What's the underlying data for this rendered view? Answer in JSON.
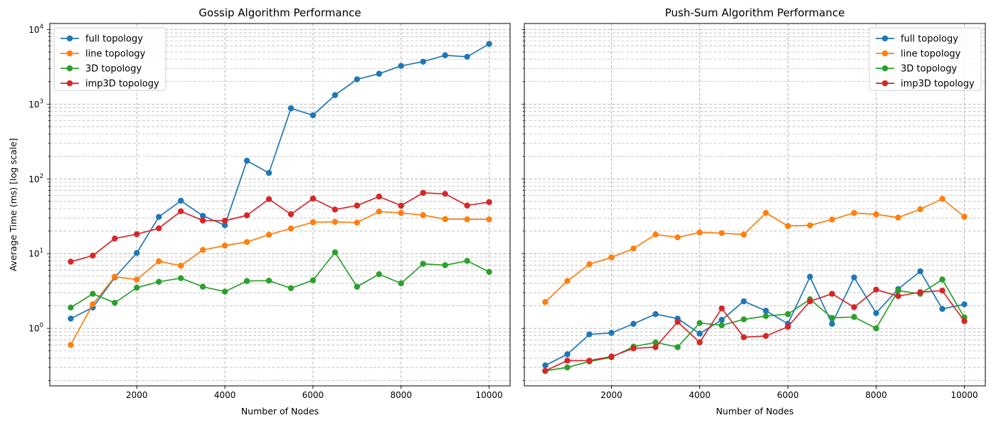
{
  "chart_data": [
    {
      "type": "line",
      "title": "Gossip Algorithm Performance",
      "xlabel": "Number of Nodes",
      "ylabel": "Average Time (ms) [log scale]",
      "yscale": "log",
      "xlim": [
        25,
        10475
      ],
      "ylim": [
        0.17,
        12000
      ],
      "xticks": [
        2000,
        4000,
        6000,
        8000,
        10000
      ],
      "xtick_labels": [
        "2000",
        "4000",
        "6000",
        "8000",
        "10000"
      ],
      "ytick_labels": [
        {
          "value": 1,
          "base": "10",
          "exp": "0"
        },
        {
          "value": 10,
          "base": "10",
          "exp": "1"
        },
        {
          "value": 100,
          "base": "10",
          "exp": "2"
        },
        {
          "value": 1000,
          "base": "10",
          "exp": "3"
        },
        {
          "value": 10000,
          "base": "10",
          "exp": "4"
        }
      ],
      "grid": true,
      "legend_position": "top-left",
      "x": [
        500,
        1000,
        1500,
        2000,
        2500,
        3000,
        3500,
        4000,
        4500,
        5000,
        5500,
        6000,
        6500,
        7000,
        7500,
        8000,
        8500,
        9000,
        9500,
        10000
      ],
      "series": [
        {
          "name": "full topology",
          "color": "#1f77b4",
          "values": [
            1.35,
            1.9,
            4.8,
            10.2,
            31,
            51,
            32,
            24,
            175,
            120,
            880,
            710,
            1320,
            2150,
            2550,
            3250,
            3700,
            4500,
            4300,
            6400
          ]
        },
        {
          "name": "line topology",
          "color": "#ff7f0e",
          "values": [
            0.6,
            2.1,
            4.9,
            4.5,
            7.9,
            6.9,
            11.2,
            12.8,
            14.3,
            17.9,
            21.7,
            26.3,
            26.6,
            26.0,
            36.5,
            35.0,
            32.7,
            29.0,
            28.8,
            28.7
          ]
        },
        {
          "name": "3D topology",
          "color": "#2ca02c",
          "values": [
            1.9,
            2.9,
            2.2,
            3.5,
            4.2,
            4.7,
            3.6,
            3.1,
            4.3,
            4.35,
            3.45,
            4.4,
            10.4,
            3.6,
            5.3,
            4.0,
            7.3,
            7.0,
            8.0,
            5.7
          ]
        },
        {
          "name": "imp3D topology",
          "color": "#d62728",
          "values": [
            7.8,
            9.4,
            15.9,
            18.2,
            21.8,
            36.8,
            27.7,
            27.6,
            32.5,
            53.6,
            33.7,
            54.5,
            38.9,
            44.0,
            58.0,
            43.8,
            65.0,
            63.0,
            44.0,
            48.9
          ]
        }
      ]
    },
    {
      "type": "line",
      "title": "Push-Sum Algorithm Performance",
      "xlabel": "Number of Nodes",
      "ylabel": "",
      "yscale": "log",
      "xlim": [
        25,
        10475
      ],
      "ylim": [
        0.17,
        12000
      ],
      "xticks": [
        2000,
        4000,
        6000,
        8000,
        10000
      ],
      "xtick_labels": [
        "2000",
        "4000",
        "6000",
        "8000",
        "10000"
      ],
      "grid": true,
      "legend_position": "top-right",
      "x": [
        500,
        1000,
        1500,
        2000,
        2500,
        3000,
        3500,
        4000,
        4500,
        5000,
        5500,
        6000,
        6500,
        7000,
        7500,
        8000,
        8500,
        9000,
        9500,
        10000
      ],
      "series": [
        {
          "name": "full topology",
          "color": "#1f77b4",
          "values": [
            0.32,
            0.45,
            0.83,
            0.87,
            1.15,
            1.55,
            1.35,
            0.85,
            1.3,
            2.3,
            1.72,
            1.15,
            4.9,
            1.15,
            4.8,
            1.6,
            3.35,
            5.8,
            1.82,
            2.1
          ]
        },
        {
          "name": "line topology",
          "color": "#ff7f0e",
          "values": [
            2.25,
            4.3,
            7.2,
            8.9,
            11.7,
            18.0,
            16.5,
            19.2,
            18.8,
            18.0,
            35.0,
            23.4,
            23.9,
            28.6,
            35.0,
            33.5,
            30.4,
            39.2,
            54.0,
            31.2
          ]
        },
        {
          "name": "3D topology",
          "color": "#2ca02c",
          "values": [
            0.27,
            0.3,
            0.36,
            0.41,
            0.57,
            0.65,
            0.56,
            1.18,
            1.1,
            1.32,
            1.46,
            1.55,
            2.45,
            1.38,
            1.42,
            1.0,
            3.2,
            2.9,
            4.5,
            1.4
          ]
        },
        {
          "name": "imp3D topology",
          "color": "#d62728",
          "values": [
            0.27,
            0.37,
            0.37,
            0.42,
            0.54,
            0.56,
            1.22,
            0.65,
            1.85,
            0.76,
            0.79,
            1.05,
            2.3,
            2.9,
            1.92,
            3.3,
            2.7,
            3.05,
            3.2,
            1.25
          ]
        }
      ]
    }
  ]
}
